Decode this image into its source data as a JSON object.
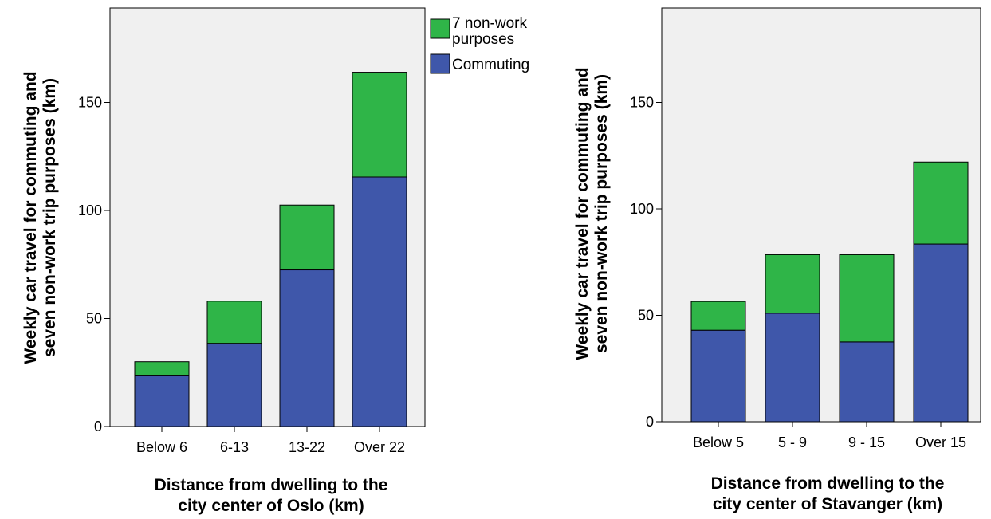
{
  "colors": {
    "commuting": "#3f57aa",
    "non_work": "#2fb548",
    "plot_bg": "#f0f0f0"
  },
  "legend": {
    "items": [
      {
        "key": "non_work",
        "line1": "7 non-work",
        "line2": "purposes"
      },
      {
        "key": "commuting",
        "line1": "Commuting",
        "line2": ""
      }
    ]
  },
  "chart_data": [
    {
      "type": "bar",
      "stacked": true,
      "categories": [
        "Below 6",
        "6-13",
        "13-22",
        "Over 22"
      ],
      "series": [
        {
          "name": "Commuting",
          "values": [
            23.5,
            38.5,
            72.5,
            115.5
          ]
        },
        {
          "name": "7 non-work purposes",
          "values": [
            6.5,
            19.5,
            30,
            48.5
          ]
        }
      ],
      "ylabel": {
        "line1": "Weekly car travel for commuting and",
        "line2": "seven non-work trip purposes (km)"
      },
      "xlabel": {
        "line1": "Distance from dwelling to the",
        "line2": "city center of Oslo (km)"
      },
      "ylim": [
        0,
        200
      ],
      "yticks": [
        0,
        50,
        100,
        150
      ],
      "grid": false,
      "legend": "right"
    },
    {
      "type": "bar",
      "stacked": true,
      "categories": [
        "Below 5",
        "5 - 9",
        "9 - 15",
        "Over 15"
      ],
      "series": [
        {
          "name": "Commuting",
          "values": [
            43,
            51,
            37.5,
            83.5
          ]
        },
        {
          "name": "7 non-work purposes",
          "values": [
            13.5,
            27.5,
            41,
            38.5
          ]
        }
      ],
      "ylabel": {
        "line1": "Weekly car travel for commuting and",
        "line2": "seven non-work trip purposes (km)"
      },
      "xlabel": {
        "line1": "Distance from dwelling to the",
        "line2": "city center of Stavanger (km)"
      },
      "ylim": [
        0,
        200
      ],
      "yticks": [
        0,
        50,
        100,
        150
      ],
      "grid": false,
      "legend": "none"
    }
  ]
}
